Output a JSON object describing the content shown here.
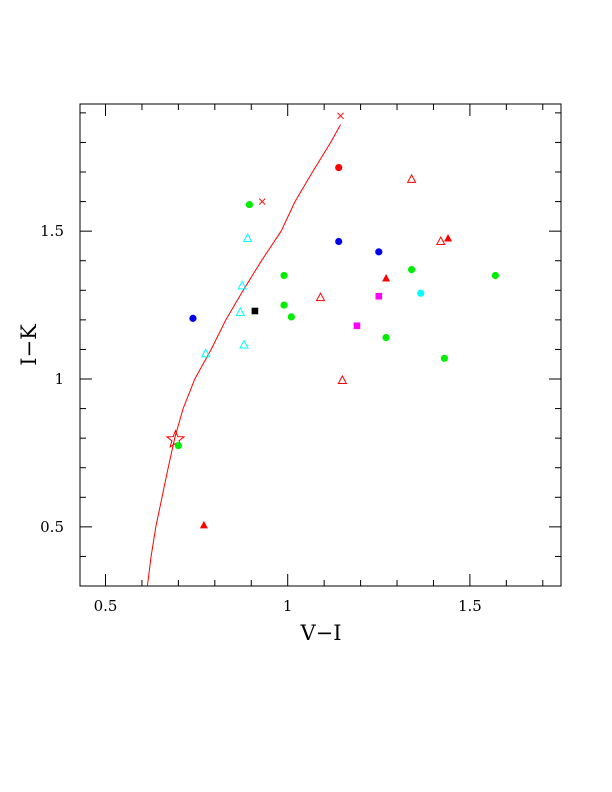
{
  "chart_data": {
    "type": "scatter",
    "title": "",
    "xlabel": "V−I",
    "ylabel": "I−K",
    "xlim": [
      0.43,
      1.75
    ],
    "ylim": [
      0.3,
      1.93
    ],
    "grid": false,
    "legend": "none",
    "x_ticks": [
      {
        "value": 0.5,
        "label": "0.5"
      },
      {
        "value": 1.0,
        "label": "1"
      },
      {
        "value": 1.5,
        "label": "1.5"
      }
    ],
    "y_ticks": [
      {
        "value": 0.5,
        "label": "0.5"
      },
      {
        "value": 1.0,
        "label": "1"
      },
      {
        "value": 1.5,
        "label": "1.5"
      }
    ],
    "x_minor_step": 0.1,
    "y_minor_step": 0.1,
    "curve": {
      "color": "#ff0000",
      "points": [
        [
          0.615,
          0.3
        ],
        [
          0.625,
          0.4
        ],
        [
          0.638,
          0.5
        ],
        [
          0.655,
          0.6
        ],
        [
          0.672,
          0.7
        ],
        [
          0.69,
          0.8
        ],
        [
          0.713,
          0.9
        ],
        [
          0.745,
          1.0
        ],
        [
          0.79,
          1.1
        ],
        [
          0.83,
          1.2
        ],
        [
          0.878,
          1.3
        ],
        [
          0.928,
          1.4
        ],
        [
          0.982,
          1.5
        ],
        [
          1.02,
          1.6
        ],
        [
          1.068,
          1.7
        ],
        [
          1.118,
          1.8
        ],
        [
          1.145,
          1.86
        ]
      ]
    },
    "curve_markers": [
      {
        "x": 0.93,
        "y": 1.6
      },
      {
        "x": 1.145,
        "y": 1.89
      }
    ],
    "star": {
      "x": 0.692,
      "y": 0.795,
      "color": "#ff0000"
    },
    "series": [
      {
        "marker": "filled-circle",
        "color": "#00ee00",
        "points": [
          {
            "x": 0.895,
            "y": 1.59
          },
          {
            "x": 0.99,
            "y": 1.35
          },
          {
            "x": 0.99,
            "y": 1.25
          },
          {
            "x": 1.01,
            "y": 1.21
          },
          {
            "x": 1.27,
            "y": 1.14
          },
          {
            "x": 1.34,
            "y": 1.37
          },
          {
            "x": 1.43,
            "y": 1.07
          },
          {
            "x": 1.57,
            "y": 1.35
          },
          {
            "x": 0.7,
            "y": 0.775
          }
        ]
      },
      {
        "marker": "filled-circle",
        "color": "#0000ee",
        "points": [
          {
            "x": 0.74,
            "y": 1.205
          },
          {
            "x": 1.14,
            "y": 1.465
          },
          {
            "x": 1.25,
            "y": 1.43
          }
        ]
      },
      {
        "marker": "filled-circle",
        "color": "#ff0000",
        "points": [
          {
            "x": 1.14,
            "y": 1.715
          }
        ]
      },
      {
        "marker": "filled-circle",
        "color": "#00ffff",
        "points": [
          {
            "x": 1.365,
            "y": 1.29
          }
        ]
      },
      {
        "marker": "filled-square",
        "color": "#000000",
        "points": [
          {
            "x": 0.91,
            "y": 1.23
          }
        ]
      },
      {
        "marker": "filled-square",
        "color": "#ff00ff",
        "points": [
          {
            "x": 1.19,
            "y": 1.18
          },
          {
            "x": 1.25,
            "y": 1.28
          }
        ]
      },
      {
        "marker": "filled-triangle",
        "color": "#ff0000",
        "points": [
          {
            "x": 0.77,
            "y": 0.505
          },
          {
            "x": 1.27,
            "y": 1.34
          },
          {
            "x": 1.44,
            "y": 1.475
          }
        ]
      },
      {
        "marker": "open-triangle",
        "color": "#ff0000",
        "points": [
          {
            "x": 1.09,
            "y": 1.275
          },
          {
            "x": 1.15,
            "y": 0.995
          },
          {
            "x": 1.34,
            "y": 1.675
          },
          {
            "x": 1.42,
            "y": 1.465
          }
        ]
      },
      {
        "marker": "open-triangle",
        "color": "#00ffff",
        "points": [
          {
            "x": 0.775,
            "y": 1.085
          },
          {
            "x": 0.87,
            "y": 1.225
          },
          {
            "x": 0.875,
            "y": 1.315
          },
          {
            "x": 0.88,
            "y": 1.115
          },
          {
            "x": 0.89,
            "y": 1.475
          }
        ]
      }
    ]
  }
}
